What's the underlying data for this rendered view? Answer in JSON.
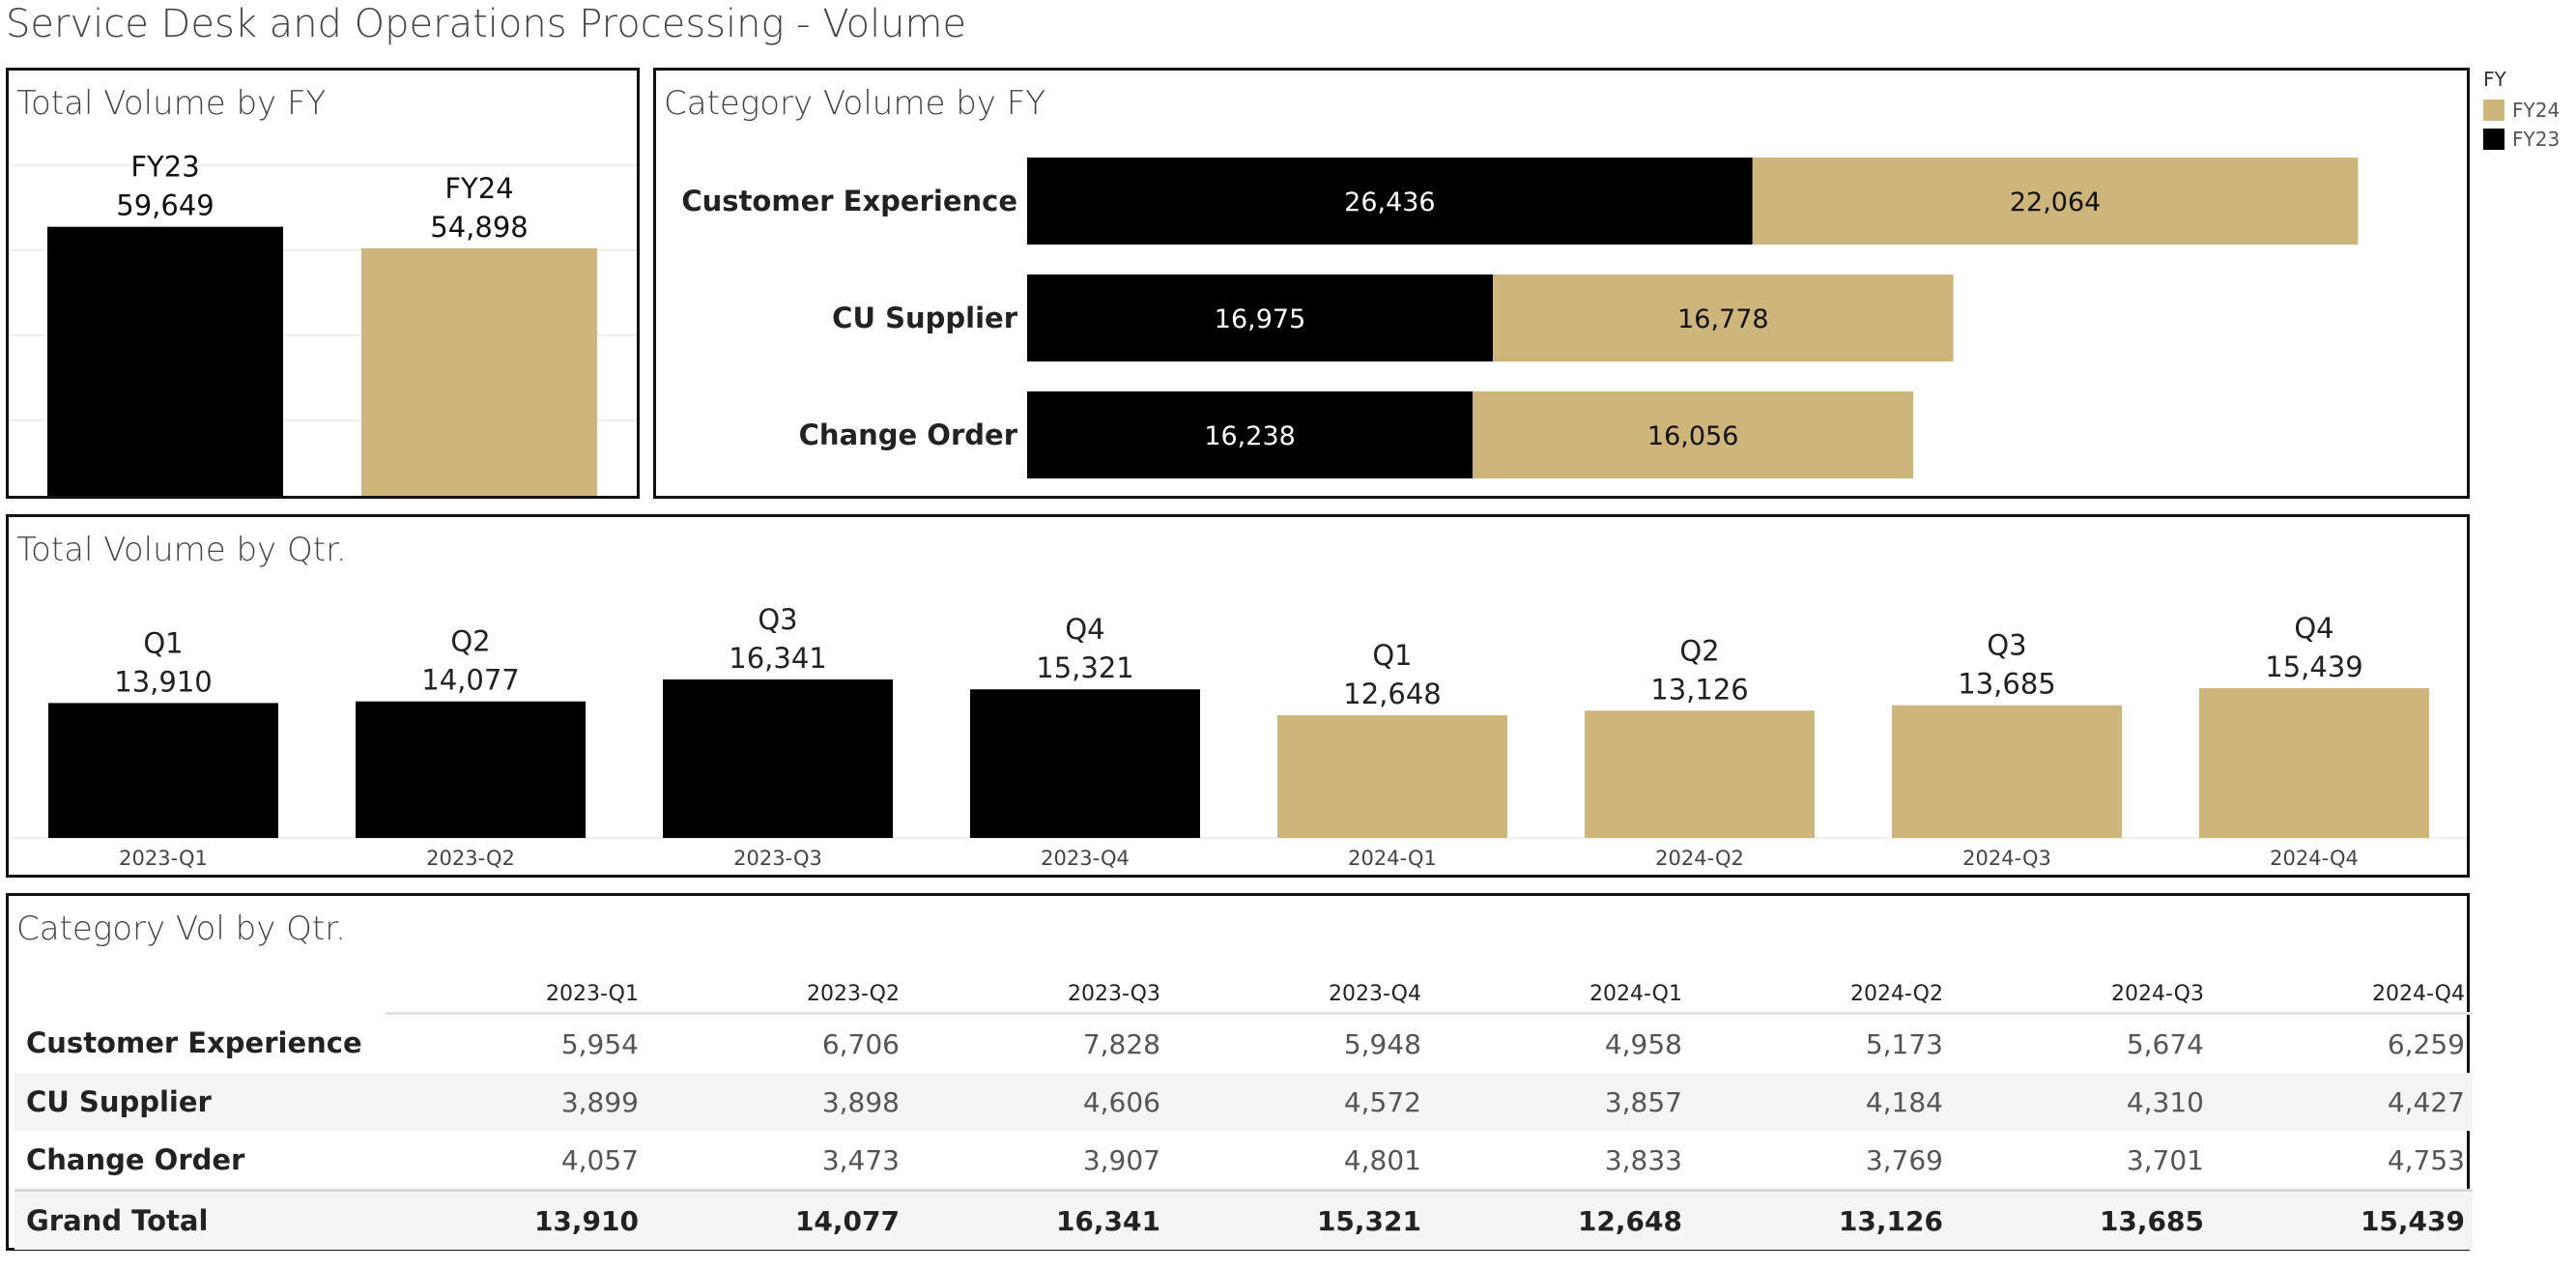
{
  "dashboard_title": "Service Desk and Operations Processing - Volume",
  "colors": {
    "FY23": "#000000",
    "FY24": "#CEB57C"
  },
  "legend": {
    "title": "FY",
    "items": [
      {
        "label": "FY24",
        "color": "#CEB57C"
      },
      {
        "label": "FY23",
        "color": "#000000"
      }
    ]
  },
  "panels": {
    "total_fy": {
      "title": "Total Volume by FY"
    },
    "category_fy": {
      "title": "Category Volume by FY"
    },
    "total_qtr": {
      "title": "Total Volume by Qtr."
    },
    "category_qtr": {
      "title": "Category Vol by Qtr."
    }
  },
  "chart_data": [
    {
      "type": "bar",
      "title": "Total Volume by FY",
      "categories": [
        "FY23",
        "FY24"
      ],
      "values": [
        59649,
        54898
      ],
      "value_labels": [
        "59,649",
        "54,898"
      ],
      "colors": [
        "#000000",
        "#CEB57C"
      ],
      "ylim": [
        0,
        60000
      ],
      "grid": true
    },
    {
      "type": "bar",
      "orientation": "horizontal",
      "stacked": true,
      "title": "Category Volume by FY",
      "categories": [
        "Customer Experience",
        "CU Supplier",
        "Change Order"
      ],
      "series": [
        {
          "name": "FY23",
          "color": "#000000",
          "values": [
            26436,
            16975,
            16238
          ],
          "labels": [
            "26,436",
            "16,975",
            "16,238"
          ]
        },
        {
          "name": "FY24",
          "color": "#CEB57C",
          "values": [
            22064,
            16778,
            16056
          ],
          "labels": [
            "22,064",
            "16,778",
            "16,056"
          ]
        }
      ],
      "xlim": [
        0,
        50000
      ]
    },
    {
      "type": "bar",
      "title": "Total Volume by Qtr.",
      "categories": [
        "2023-Q1",
        "2023-Q2",
        "2023-Q3",
        "2023-Q4",
        "2024-Q1",
        "2024-Q2",
        "2024-Q3",
        "2024-Q4"
      ],
      "quarter_labels": [
        "Q1",
        "Q2",
        "Q3",
        "Q4",
        "Q1",
        "Q2",
        "Q3",
        "Q4"
      ],
      "values": [
        13910,
        14077,
        16341,
        15321,
        12648,
        13126,
        13685,
        15439
      ],
      "value_labels": [
        "13,910",
        "14,077",
        "16,341",
        "15,321",
        "12,648",
        "13,126",
        "13,685",
        "15,439"
      ],
      "colors": [
        "#000000",
        "#000000",
        "#000000",
        "#000000",
        "#CEB57C",
        "#CEB57C",
        "#CEB57C",
        "#CEB57C"
      ],
      "ylim": [
        0,
        16341
      ]
    },
    {
      "type": "table",
      "title": "Category Vol by Qtr.",
      "columns": [
        "2023-Q1",
        "2023-Q2",
        "2023-Q3",
        "2023-Q4",
        "2024-Q1",
        "2024-Q2",
        "2024-Q3",
        "2024-Q4"
      ],
      "rows": [
        {
          "label": "Customer Experience",
          "values": [
            "5,954",
            "6,706",
            "7,828",
            "5,948",
            "4,958",
            "5,173",
            "5,674",
            "6,259"
          ]
        },
        {
          "label": "CU Supplier",
          "values": [
            "3,899",
            "3,898",
            "4,606",
            "4,572",
            "3,857",
            "4,184",
            "4,310",
            "4,427"
          ]
        },
        {
          "label": "Change Order",
          "values": [
            "4,057",
            "3,473",
            "3,907",
            "4,801",
            "3,833",
            "3,769",
            "3,701",
            "4,753"
          ]
        }
      ],
      "total": {
        "label": "Grand Total",
        "values": [
          "13,910",
          "14,077",
          "16,341",
          "15,321",
          "12,648",
          "13,126",
          "13,685",
          "15,439"
        ]
      }
    }
  ]
}
